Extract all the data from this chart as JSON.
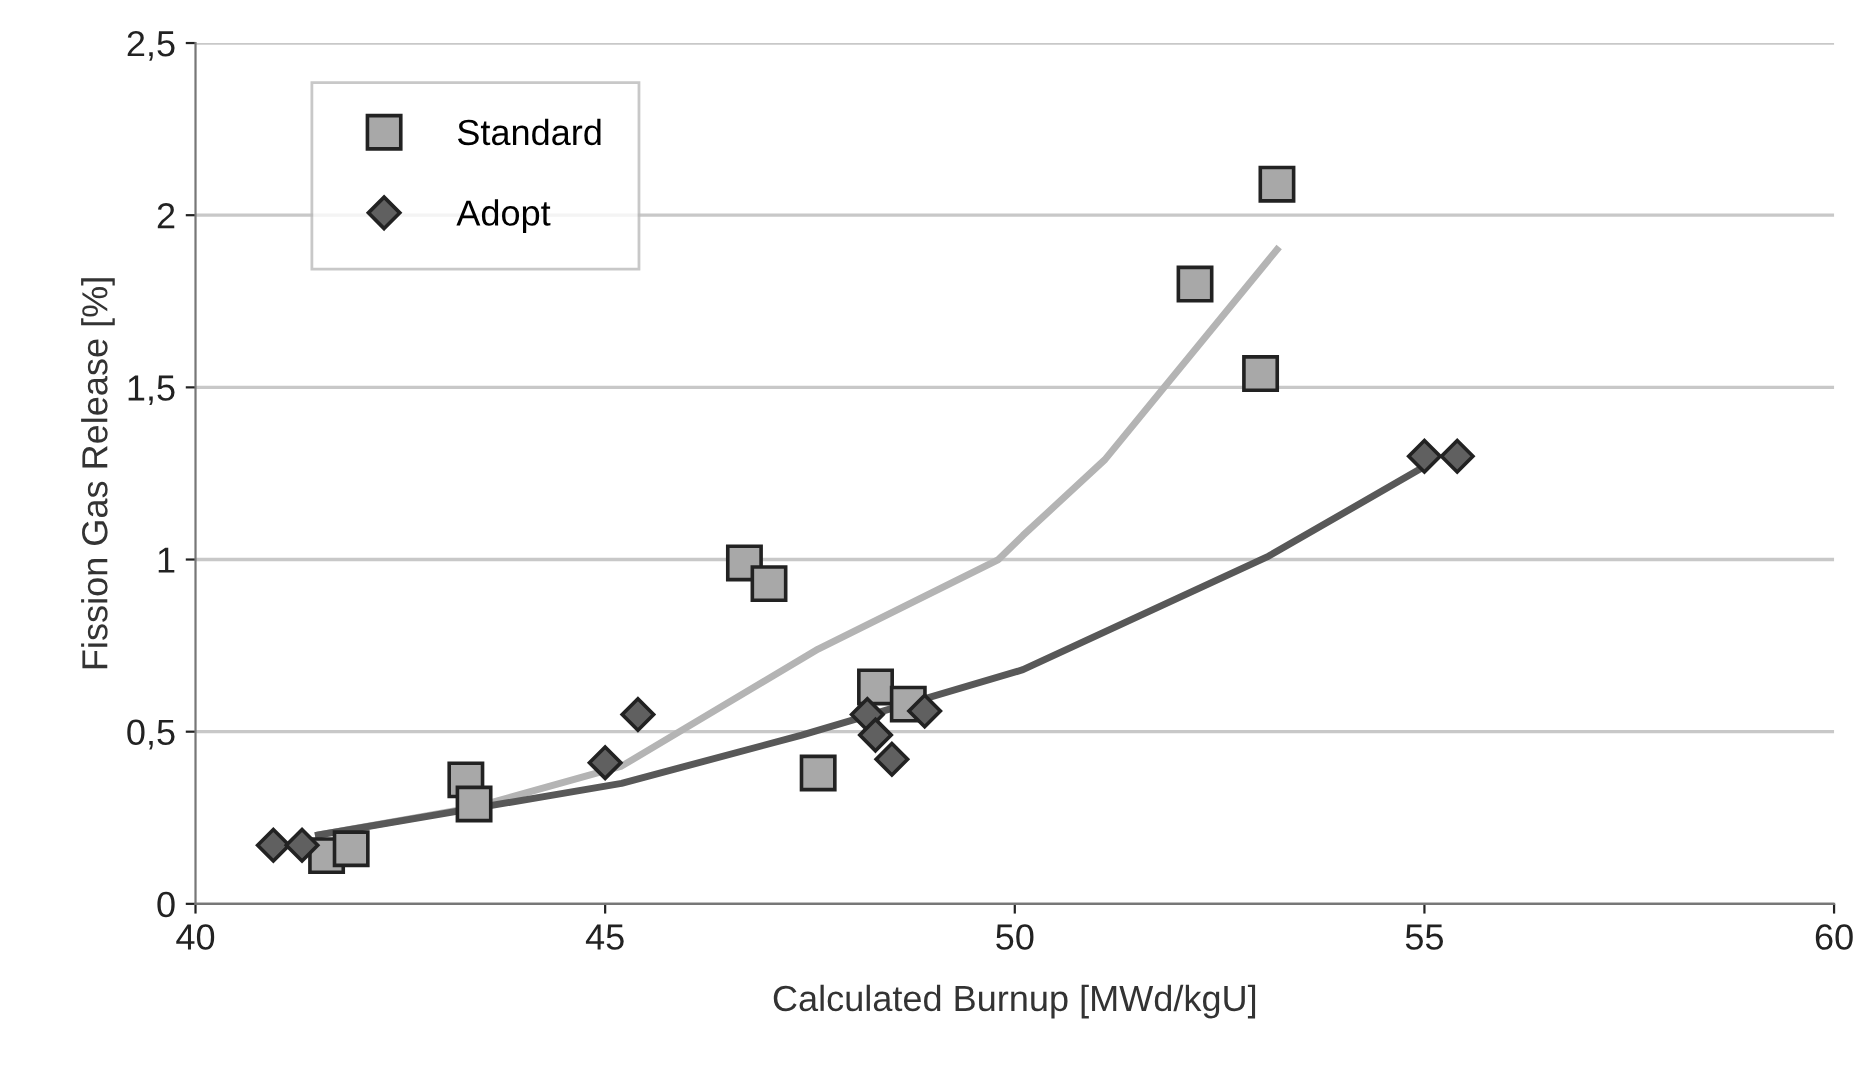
{
  "chart_data": {
    "type": "scatter",
    "xlabel": "Calculated Burnup [MWd/kgU]",
    "ylabel": "Fission Gas Release [%]",
    "xlim": [
      40,
      60
    ],
    "xticks": [
      40,
      45,
      50,
      55,
      60
    ],
    "ylim": [
      0,
      2.5
    ],
    "yticks": [
      0,
      {
        "value": 0.5,
        "label": "0,5"
      },
      1,
      {
        "value": 1.5,
        "label": "1,5"
      },
      2,
      {
        "value": 2.5,
        "label": "2,5"
      }
    ],
    "grid": "y",
    "legend": "top left",
    "series": [
      {
        "name": "Standard",
        "marker": "square",
        "color": "#a8a8a8",
        "x": [
          41.6,
          41.9,
          43.3,
          43.4,
          46.7,
          47.0,
          47.6,
          48.3,
          48.7,
          52.2,
          53.0,
          53.2
        ],
        "values": [
          0.14,
          0.16,
          0.36,
          0.29,
          0.99,
          0.93,
          0.38,
          0.63,
          0.58,
          1.8,
          1.54,
          2.09
        ]
      },
      {
        "name": "Adopt",
        "marker": "diamond",
        "color": "#606060",
        "x": [
          40.95,
          41.3,
          45.0,
          45.4,
          48.2,
          48.3,
          48.5,
          48.9,
          55.0,
          55.4
        ],
        "values": [
          0.17,
          0.17,
          0.41,
          0.55,
          0.55,
          0.49,
          0.42,
          0.56,
          1.3,
          1.3
        ]
      },
      {
        "type": "line",
        "color": "#b4b4b4",
        "x": [
          41.5,
          43.4,
          45.2,
          47.6,
          49.8,
          50.1,
          51.1,
          53.2
        ],
        "values": [
          0.2,
          0.28,
          0.4,
          0.74,
          1.0,
          1.07,
          1.29,
          1.9
        ]
      },
      {
        "type": "line",
        "color": "#585858",
        "x": [
          41.5,
          45.2,
          47.4,
          50.1,
          53.1,
          55.0
        ],
        "values": [
          0.2,
          0.35,
          0.49,
          0.68,
          1.01,
          1.27
        ]
      }
    ]
  }
}
